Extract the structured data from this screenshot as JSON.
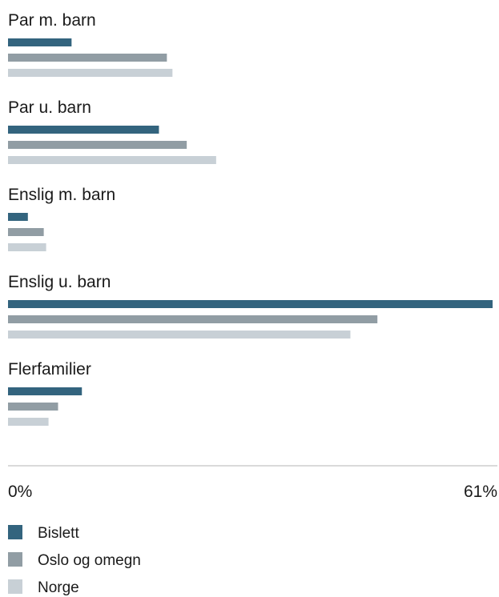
{
  "chart_data": {
    "type": "bar",
    "orientation": "horizontal",
    "categories": [
      "Par m. barn",
      "Par u. barn",
      "Enslig m. barn",
      "Enslig u. barn",
      "Flerfamilier"
    ],
    "series": [
      {
        "name": "Bislett",
        "color": "#33647e",
        "values": [
          8,
          19,
          2.5,
          61,
          9.3
        ]
      },
      {
        "name": "Oslo og omegn",
        "color": "#919da4",
        "values": [
          20,
          22.5,
          4.5,
          46.5,
          6.3
        ]
      },
      {
        "name": "Norge",
        "color": "#c8d0d6",
        "values": [
          20.7,
          26.2,
          4.8,
          43.1,
          5.1
        ]
      }
    ],
    "xlim": [
      0,
      61
    ],
    "ticks": [
      "0%",
      "61%"
    ],
    "legend_position": "bottom-left",
    "grid": false
  }
}
